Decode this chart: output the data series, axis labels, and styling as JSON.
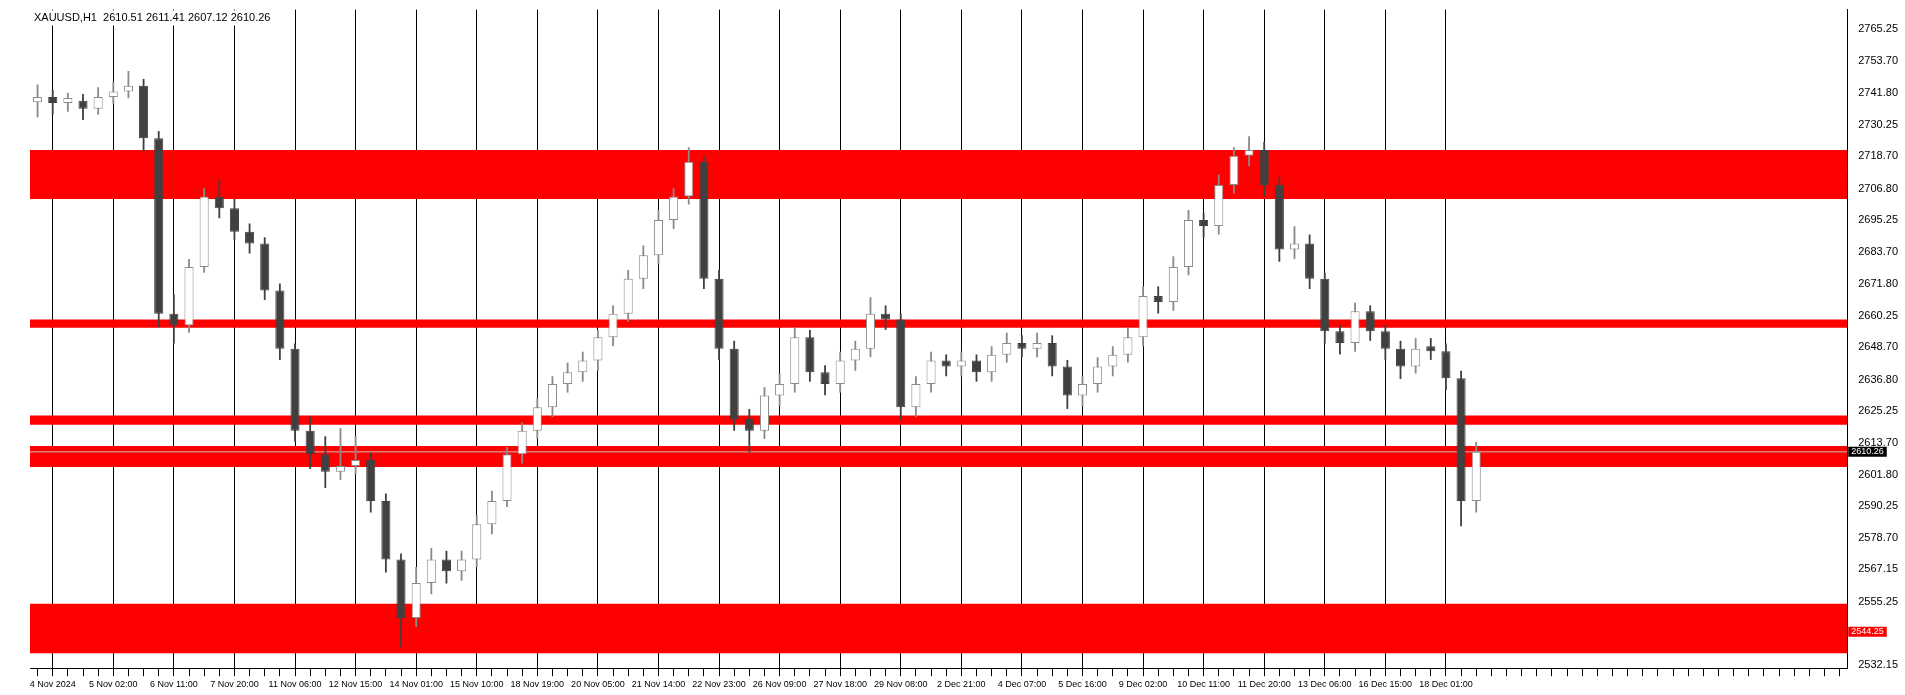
{
  "chart_data": {
    "type": "candlestick",
    "title": "XAUUSD,H1  2610.51 2611.41 2607.12 2610.26",
    "categories": [
      null,
      "4 Nov 2024",
      null,
      null,
      null,
      "5 Nov 02:00",
      null,
      null,
      null,
      "6 Nov 11:00",
      null,
      null,
      null,
      "7 Nov 20:00",
      null,
      null,
      null,
      "11 Nov 06:00",
      null,
      null,
      null,
      "12 Nov 15:00",
      null,
      null,
      null,
      "14 Nov 01:00",
      null,
      null,
      null,
      "15 Nov 10:00",
      null,
      null,
      null,
      "18 Nov 19:00",
      null,
      null,
      null,
      "20 Nov 05:00",
      null,
      null,
      null,
      "21 Nov 14:00",
      null,
      null,
      null,
      "22 Nov 23:00",
      null,
      null,
      null,
      "26 Nov 09:00",
      null,
      null,
      null,
      "27 Nov 18:00",
      null,
      null,
      null,
      "29 Nov 08:00",
      null,
      null,
      null,
      "2 Dec 21:00",
      null,
      null,
      null,
      "4 Dec 07:00",
      null,
      null,
      null,
      "5 Dec 16:00",
      null,
      null,
      null,
      "9 Dec 02:00",
      null,
      null,
      null,
      "10 Dec 11:00",
      null,
      null,
      null,
      "11 Dec 20:00",
      null,
      null,
      null,
      "13 Dec 06:00",
      null,
      null,
      null,
      "16 Dec 15:00",
      null,
      null,
      null,
      "18 Dec 01:00",
      null,
      null,
      null,
      null,
      null,
      null,
      null,
      null,
      null,
      null,
      null,
      null,
      null,
      null,
      null,
      null,
      null,
      null,
      null,
      null,
      null,
      null,
      null,
      null,
      null,
      null
    ],
    "ohlc": [
      [
        2738.5,
        2745.0,
        2733.0,
        2740.4
      ],
      [
        2740.4,
        2743.0,
        2734.0,
        2738.2
      ],
      [
        2738.2,
        2742.0,
        2735.0,
        2739.1
      ],
      [
        2739.1,
        2741.5,
        2732.0,
        2736.1
      ],
      [
        2736.1,
        2744.0,
        2734.0,
        2740.4
      ],
      [
        2740.4,
        2746.0,
        2738.0,
        2742.5
      ],
      [
        2742.5,
        2750.0,
        2740.0,
        2744.6
      ],
      [
        2744.6,
        2747.0,
        2720.0,
        2725.3
      ],
      [
        2725.3,
        2728.0,
        2656.0,
        2660.9
      ],
      [
        2660.9,
        2668.0,
        2650.0,
        2656.6
      ],
      [
        2656.6,
        2681.0,
        2654.0,
        2678.1
      ],
      [
        2678.1,
        2707.0,
        2676.0,
        2703.9
      ],
      [
        2703.9,
        2710.0,
        2696.0,
        2699.6
      ],
      [
        2699.6,
        2703.0,
        2688.0,
        2691.0
      ],
      [
        2691.0,
        2694.0,
        2683.0,
        2686.7
      ],
      [
        2686.7,
        2689.0,
        2666.0,
        2669.5
      ],
      [
        2669.5,
        2672.0,
        2644.0,
        2648.1
      ],
      [
        2648.1,
        2650.0,
        2614.0,
        2618.0
      ],
      [
        2618.0,
        2623.0,
        2604.0,
        2609.4
      ],
      [
        2609.4,
        2616.0,
        2597.0,
        2603.0
      ],
      [
        2603.0,
        2619.0,
        2600.0,
        2605.1
      ],
      [
        2605.1,
        2616.0,
        2602.0,
        2607.3
      ],
      [
        2607.3,
        2610.0,
        2588.0,
        2592.2
      ],
      [
        2592.2,
        2595.0,
        2566.0,
        2570.8
      ],
      [
        2570.8,
        2573.0,
        2538.6,
        2549.3
      ],
      [
        2549.3,
        2568.0,
        2546.0,
        2562.2
      ],
      [
        2562.2,
        2575.0,
        2558.0,
        2570.8
      ],
      [
        2570.8,
        2574.0,
        2562.0,
        2566.5
      ],
      [
        2566.5,
        2574.0,
        2563.0,
        2570.8
      ],
      [
        2570.8,
        2587.0,
        2568.0,
        2583.7
      ],
      [
        2583.7,
        2596.0,
        2580.0,
        2592.2
      ],
      [
        2592.2,
        2612.0,
        2590.0,
        2609.4
      ],
      [
        2609.4,
        2621.0,
        2606.0,
        2618.0
      ],
      [
        2618.0,
        2630.0,
        2615.0,
        2626.6
      ],
      [
        2626.6,
        2638.0,
        2623.0,
        2635.2
      ],
      [
        2635.2,
        2643.0,
        2632.0,
        2639.5
      ],
      [
        2639.5,
        2647.0,
        2636.0,
        2643.8
      ],
      [
        2643.8,
        2655.0,
        2640.0,
        2652.3
      ],
      [
        2652.3,
        2664.0,
        2649.0,
        2660.9
      ],
      [
        2660.9,
        2677.0,
        2658.0,
        2673.8
      ],
      [
        2673.8,
        2686.0,
        2670.0,
        2682.4
      ],
      [
        2682.4,
        2699.0,
        2679.0,
        2695.3
      ],
      [
        2695.3,
        2707.0,
        2692.0,
        2703.9
      ],
      [
        2703.9,
        2722.0,
        2701.0,
        2716.7
      ],
      [
        2716.7,
        2719.0,
        2670.0,
        2673.8
      ],
      [
        2673.8,
        2677.0,
        2644.0,
        2648.1
      ],
      [
        2648.1,
        2651.0,
        2618.0,
        2622.3
      ],
      [
        2622.3,
        2626.0,
        2610.0,
        2618.0
      ],
      [
        2618.0,
        2634.0,
        2615.0,
        2630.9
      ],
      [
        2630.9,
        2639.0,
        2627.0,
        2635.2
      ],
      [
        2635.2,
        2656.0,
        2632.0,
        2652.3
      ],
      [
        2652.3,
        2655.0,
        2636.0,
        2639.5
      ],
      [
        2639.5,
        2642.0,
        2631.0,
        2635.2
      ],
      [
        2635.2,
        2647.0,
        2632.0,
        2643.8
      ],
      [
        2643.8,
        2651.0,
        2640.0,
        2648.1
      ],
      [
        2648.1,
        2667.0,
        2645.0,
        2660.9
      ],
      [
        2660.9,
        2664.0,
        2655.0,
        2658.8
      ],
      [
        2658.8,
        2661.0,
        2622.0,
        2626.6
      ],
      [
        2626.6,
        2638.0,
        2623.0,
        2635.2
      ],
      [
        2635.2,
        2647.0,
        2632.0,
        2643.8
      ],
      [
        2643.8,
        2646.0,
        2638.0,
        2641.6
      ],
      [
        2641.6,
        2647.0,
        2638.0,
        2643.8
      ],
      [
        2643.8,
        2646.0,
        2636.0,
        2639.5
      ],
      [
        2639.5,
        2649.0,
        2636.0,
        2645.9
      ],
      [
        2645.9,
        2654.0,
        2643.0,
        2650.2
      ],
      [
        2650.2,
        2653.0,
        2645.0,
        2648.1
      ],
      [
        2648.1,
        2654.0,
        2645.0,
        2650.2
      ],
      [
        2650.2,
        2653.0,
        2638.0,
        2641.6
      ],
      [
        2641.6,
        2644.0,
        2626.0,
        2630.9
      ],
      [
        2630.9,
        2638.0,
        2627.0,
        2635.2
      ],
      [
        2635.2,
        2645.0,
        2632.0,
        2641.6
      ],
      [
        2641.6,
        2649.0,
        2638.0,
        2645.9
      ],
      [
        2645.9,
        2656.0,
        2643.0,
        2652.3
      ],
      [
        2652.3,
        2671.0,
        2649.0,
        2667.4
      ],
      [
        2667.4,
        2671.0,
        2661.0,
        2665.2
      ],
      [
        2665.2,
        2682.0,
        2662.0,
        2678.1
      ],
      [
        2678.1,
        2699.0,
        2675.0,
        2695.3
      ],
      [
        2695.3,
        2698.0,
        2689.0,
        2693.1
      ],
      [
        2693.1,
        2712.0,
        2690.0,
        2708.2
      ],
      [
        2708.2,
        2722.0,
        2705.0,
        2718.9
      ],
      [
        2718.9,
        2726.0,
        2715.0,
        2721.0
      ],
      [
        2721.0,
        2724.0,
        2704.0,
        2708.2
      ],
      [
        2708.2,
        2711.0,
        2680.0,
        2684.5
      ],
      [
        2684.5,
        2693.0,
        2681.0,
        2686.7
      ],
      [
        2686.7,
        2690.0,
        2670.0,
        2673.8
      ],
      [
        2673.8,
        2676.0,
        2650.0,
        2654.5
      ],
      [
        2654.5,
        2657.0,
        2646.0,
        2650.2
      ],
      [
        2650.2,
        2665.0,
        2647.0,
        2661.8
      ],
      [
        2661.8,
        2664.0,
        2651.0,
        2654.5
      ],
      [
        2654.5,
        2657.0,
        2644.0,
        2648.1
      ],
      [
        2648.1,
        2651.0,
        2637.0,
        2641.6
      ],
      [
        2641.6,
        2652.0,
        2639.0,
        2648.1
      ],
      [
        2648.1,
        2652.0,
        2644.0,
        2647.2
      ],
      [
        2647.2,
        2650.0,
        2633.0,
        2637.3
      ],
      [
        2637.3,
        2640.0,
        2583.0,
        2592.2
      ],
      [
        2592.2,
        2614.0,
        2588.0,
        2610.3
      ],
      null,
      null,
      null,
      null,
      null,
      null,
      null,
      null,
      null,
      null,
      null,
      null,
      null,
      null,
      null,
      null,
      null,
      null,
      null,
      null,
      null,
      null,
      null,
      null
    ],
    "ylim": [
      2530.9,
      2772.5
    ],
    "yticks": [
      2532.15,
      2555.25,
      2567.15,
      {
        "value": 2578.7,
        "label": "2578.70"
      },
      2590.25,
      {
        "value": 2601.8,
        "label": "2601.80"
      },
      {
        "value": 2613.7,
        "label": "2613.70"
      },
      2625.25,
      {
        "value": 2636.8,
        "label": "2636.80"
      },
      {
        "value": 2648.7,
        "label": "2648.70"
      },
      2660.25,
      {
        "value": 2671.8,
        "label": "2671.80"
      },
      {
        "value": 2683.7,
        "label": "2683.70"
      },
      2695.25,
      {
        "value": 2706.8,
        "label": "2706.80"
      },
      {
        "value": 2718.7,
        "label": "2718.70"
      },
      2730.25,
      {
        "value": 2741.8,
        "label": "2741.80"
      },
      {
        "value": 2753.7,
        "label": "2753.70"
      },
      2765.25
    ],
    "grid": "x",
    "legend": false,
    "bands": [
      {
        "axis": "y",
        "from": 2709.0,
        "to": 2717.6,
        "color": "#ff0000"
      },
      {
        "axis": "y",
        "from": 2703.0,
        "to": 2710.3,
        "color": "#ff0000"
      },
      {
        "axis": "y",
        "from": 2712.4,
        "to": 2721.0,
        "color": "#ff0000"
      },
      {
        "axis": "y",
        "from": 2655.8,
        "to": 2658.8,
        "color": "#ff0000"
      },
      {
        "axis": "y",
        "from": 2620.2,
        "to": 2623.6,
        "color": "#ff0000"
      },
      {
        "axis": "y",
        "from": 2604.7,
        "to": 2612.4,
        "color": "#ff0000"
      },
      {
        "axis": "y",
        "from": 2536.4,
        "to": 2554.5,
        "color": "#ff0000"
      }
    ],
    "ref_lines": [
      {
        "axis": "y",
        "value": 2610.26,
        "label": "2610.26",
        "color": "#c0c0c0"
      },
      {
        "axis": "y",
        "value": 2544.25,
        "label": "2544.25",
        "color": "#ff0000"
      }
    ]
  }
}
